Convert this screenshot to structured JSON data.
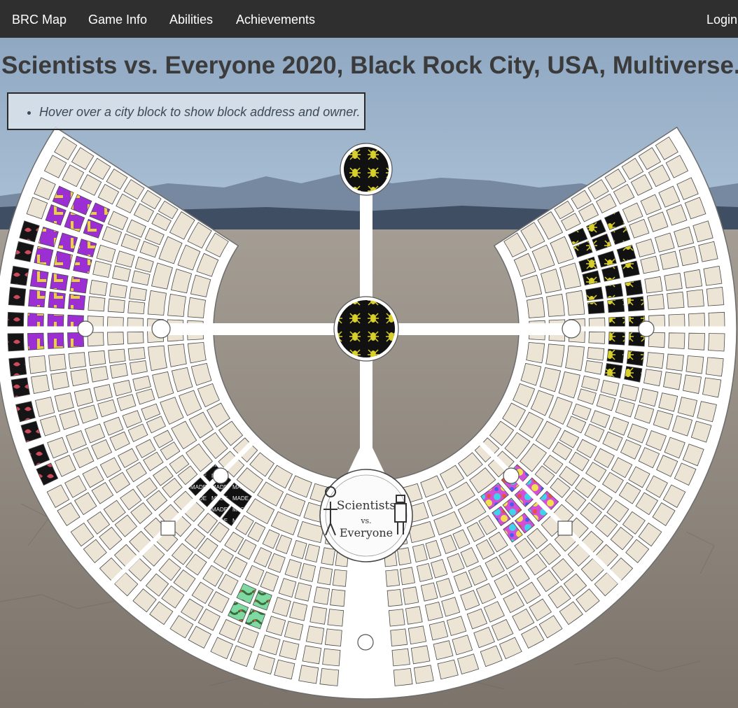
{
  "nav": {
    "items": [
      {
        "id": "brc-map",
        "label": "BRC Map"
      },
      {
        "id": "game-info",
        "label": "Game Info"
      },
      {
        "id": "abilities",
        "label": "Abilities"
      },
      {
        "id": "achievements",
        "label": "Achievements"
      }
    ],
    "login_label": "Login"
  },
  "page": {
    "title": "Scientists vs. Everyone 2020, Black Rock City, USA, Multiverse."
  },
  "hint": {
    "text": "Hover over a city block to show block address and owner."
  },
  "center_logo": {
    "line1": "Scientists",
    "line2": "vs.",
    "line3": "Everyone"
  },
  "map": {
    "block_color": "#ece4d4",
    "road_color": "#ffffff",
    "owned_patterns": {
      "purple-l": {
        "bg": "#9c2fd4",
        "fg": "#e8d23a",
        "glyph": "L"
      },
      "ant-black": {
        "bg": "#111111",
        "fg": "#d8cf2a",
        "glyph": "ant"
      },
      "red-shells": {
        "bg": "#151515",
        "fg": "#c94b5e",
        "glyph": "shell"
      },
      "rainbow": {
        "bg": "#d24fd8",
        "fg": "#3fd2e8",
        "glyph": "splash"
      },
      "green-snakes": {
        "bg": "#7fd9a2",
        "fg": "#3a6b3a",
        "glyph": "snake"
      },
      "made-text": {
        "bg": "#111111",
        "fg": "#eeeeee",
        "glyph": "MADE"
      },
      "blue-tile": {
        "bg": "#2c6fd8",
        "fg": "#9ff08a",
        "glyph": "tile"
      }
    }
  }
}
